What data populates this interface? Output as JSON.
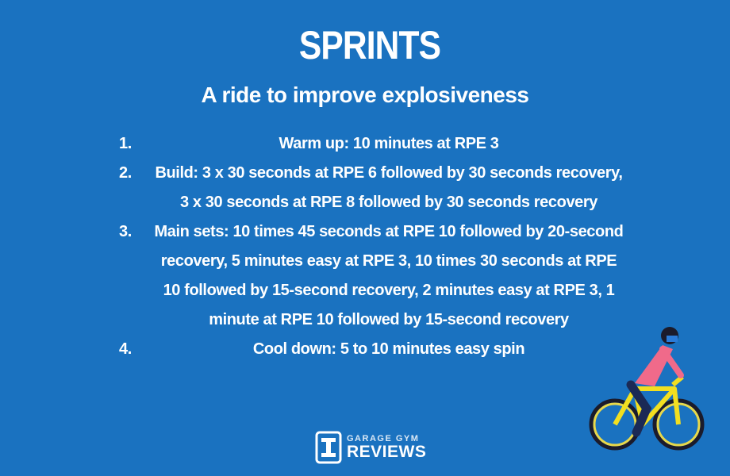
{
  "title": "SPRINTS",
  "subtitle": "A ride to improve explosiveness",
  "steps": [
    {
      "number": "1.",
      "text": "Warm up: 10 minutes at RPE 3"
    },
    {
      "number": "2.",
      "text": "Build: 3 x 30 seconds at RPE 6 followed by 30 seconds recovery, 3 x 30 seconds at RPE 8 followed by 30 seconds recovery"
    },
    {
      "number": "3.",
      "text": "Main sets: 10 times 45 seconds at RPE 10 followed by 20-second recovery, 5 minutes easy at RPE 3, 10 times 30 seconds at RPE 10 followed by 15-second recovery, 2 minutes easy at RPE 3, 1 minute at RPE 10 followed by 15-second recovery"
    },
    {
      "number": "4.",
      "text": "Cool down: 5 to 10 minutes easy spin"
    }
  ],
  "logo": {
    "line1": "GARAGE GYM",
    "line2": "REVIEWS"
  }
}
